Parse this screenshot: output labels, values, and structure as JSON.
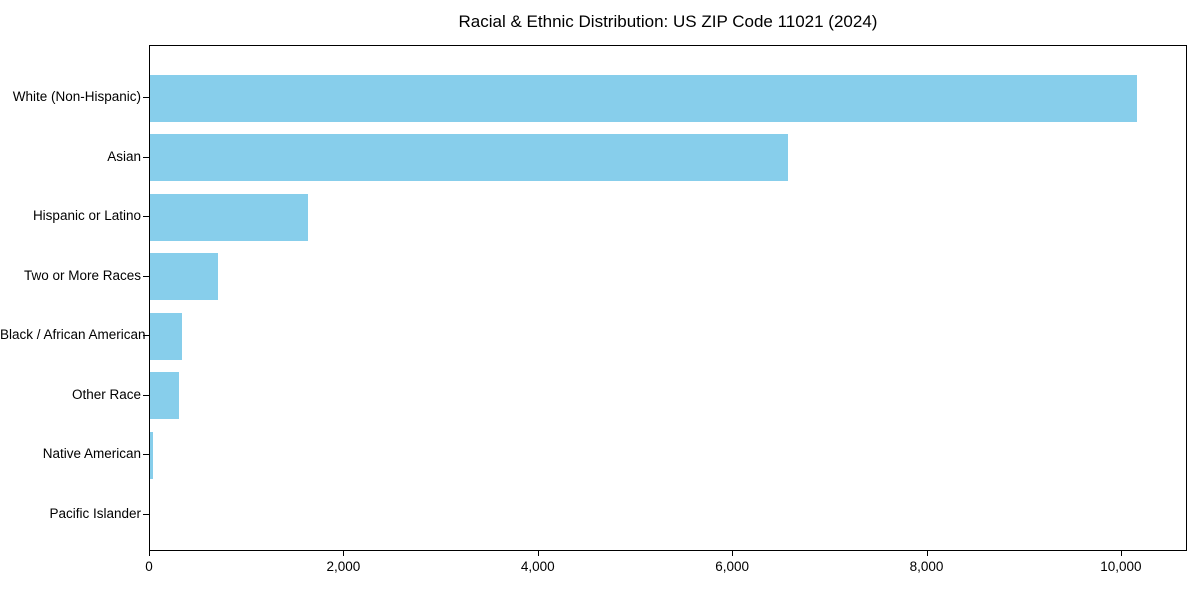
{
  "title": "Racial & Ethnic Distribution: US ZIP Code 11021 (2024)",
  "chart_data": {
    "type": "bar",
    "orientation": "horizontal",
    "title": "Racial & Ethnic Distribution: US ZIP Code 11021 (2024)",
    "categories": [
      "White (Non-Hispanic)",
      "Asian",
      "Hispanic or Latino",
      "Two or More Races",
      "Black / African American",
      "Other Race",
      "Native American",
      "Pacific Islander"
    ],
    "values": [
      10150,
      6560,
      1630,
      700,
      330,
      300,
      30,
      0
    ],
    "xlabel": "",
    "ylabel": "",
    "xlim": [
      0,
      10680
    ],
    "xticks": [
      0,
      2000,
      4000,
      6000,
      8000,
      10000
    ],
    "xtick_labels": [
      "0",
      "2,000",
      "4,000",
      "6,000",
      "8,000",
      "10,000"
    ],
    "bar_color": "#87CEEB",
    "text_color": "#000000",
    "axis_color": "#000000",
    "background_color": "#ffffff",
    "grid": false,
    "legend": null
  }
}
